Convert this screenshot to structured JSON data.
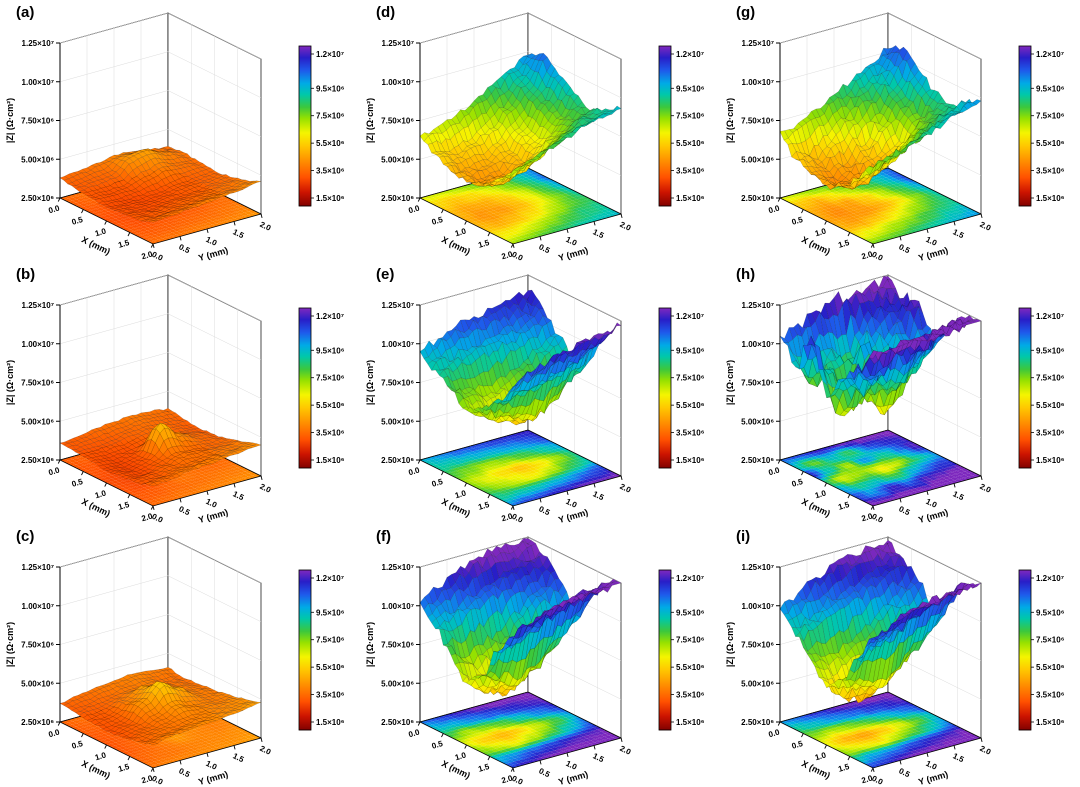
{
  "figure": {
    "description": "3x3 grid of 3D surface plots of impedance magnitude |Z| mapped over an X-Y area, with floor projection heatmaps and rainbow color scales",
    "rows": 3,
    "columns": 3
  },
  "chart_data": {
    "type": "surface",
    "z_values_unit": "10⁶ Ω·cm²",
    "x_axis": {
      "label": "X (mm)",
      "range": [
        0,
        2
      ],
      "ticks": [
        "0.0",
        "0.5",
        "1.0",
        "1.5",
        "2.0"
      ],
      "tick_values": [
        0,
        0.5,
        1,
        1.5,
        2
      ]
    },
    "y_axis": {
      "label": "Y (mm)",
      "range": [
        0,
        2
      ],
      "ticks": [
        "0.0",
        "0.5",
        "1.0",
        "1.5",
        "2.0"
      ],
      "tick_values": [
        0,
        0.5,
        1,
        1.5,
        2
      ]
    },
    "z_axis": {
      "label": "|Z| (Ω·cm²)",
      "min_display": 2.5,
      "max_display": 12.5,
      "tick_values": [
        2.5,
        5.0,
        7.5,
        10.0,
        12.5
      ],
      "tick_labels": [
        "2.50×10⁶",
        "5.00×10⁶",
        "7.50×10⁶",
        "1.00×10⁷",
        "1.25×10⁷"
      ]
    },
    "colorbar": {
      "min": 1.5,
      "max": 12.0,
      "tick_values": [
        1.5,
        3.5,
        5.5,
        7.5,
        9.5,
        12.0
      ],
      "tick_labels": [
        "1.5×10⁶",
        "3.5×10⁶",
        "5.5×10⁶",
        "7.5×10⁶",
        "9.5×10⁶",
        "1.2×10⁷"
      ]
    },
    "colormap_stops": [
      [
        0.0,
        [
          127,
          0,
          0
        ]
      ],
      [
        0.09,
        [
          205,
          20,
          0
        ]
      ],
      [
        0.18,
        [
          255,
          80,
          0
        ]
      ],
      [
        0.28,
        [
          255,
          140,
          0
        ]
      ],
      [
        0.38,
        [
          255,
          200,
          0
        ]
      ],
      [
        0.46,
        [
          245,
          245,
          0
        ]
      ],
      [
        0.55,
        [
          150,
          225,
          0
        ]
      ],
      [
        0.62,
        [
          60,
          200,
          60
        ]
      ],
      [
        0.7,
        [
          0,
          200,
          170
        ]
      ],
      [
        0.77,
        [
          0,
          170,
          230
        ]
      ],
      [
        0.85,
        [
          30,
          90,
          235
        ]
      ],
      [
        0.93,
        [
          40,
          30,
          200
        ]
      ],
      [
        1.0,
        [
          125,
          40,
          190
        ]
      ]
    ],
    "panels": [
      {
        "label": "(a)",
        "roughness": 0.12,
        "z_values": [
          [
            3.8,
            3.6,
            3.5,
            3.4,
            3.5,
            3.6,
            3.9
          ],
          [
            3.9,
            3.7,
            3.4,
            3.3,
            3.4,
            3.6,
            4.0
          ],
          [
            4.1,
            3.8,
            3.5,
            3.3,
            3.4,
            3.7,
            4.1
          ],
          [
            4.3,
            4.6,
            3.9,
            3.4,
            3.5,
            3.8,
            4.2
          ],
          [
            4.2,
            4.8,
            4.2,
            3.6,
            3.6,
            3.9,
            4.3
          ],
          [
            4.0,
            4.3,
            4.0,
            3.7,
            3.8,
            4.0,
            4.4
          ],
          [
            3.9,
            4.0,
            3.9,
            3.8,
            3.9,
            4.2,
            4.6
          ]
        ]
      },
      {
        "label": "(d)",
        "roughness": 0.35,
        "z_values": [
          [
            6.5,
            5.8,
            5.2,
            5.0,
            5.3,
            6.0,
            7.0
          ],
          [
            6.8,
            5.5,
            4.8,
            4.6,
            5.0,
            6.2,
            7.5
          ],
          [
            7.2,
            5.8,
            4.9,
            4.7,
            5.4,
            6.8,
            8.0
          ],
          [
            7.8,
            6.5,
            5.5,
            5.2,
            6.0,
            7.4,
            8.4
          ],
          [
            8.5,
            7.4,
            6.5,
            6.2,
            7.0,
            8.0,
            8.8
          ],
          [
            9.2,
            8.6,
            8.0,
            7.5,
            7.8,
            8.5,
            9.0
          ],
          [
            9.8,
            10.4,
            9.5,
            8.8,
            8.2,
            8.8,
            9.3
          ]
        ]
      },
      {
        "label": "(g)",
        "roughness": 0.5,
        "z_values": [
          [
            6.8,
            5.5,
            5.0,
            4.8,
            5.2,
            6.2,
            7.4
          ],
          [
            7.0,
            5.2,
            4.5,
            4.4,
            5.0,
            6.5,
            7.8
          ],
          [
            7.6,
            6.0,
            4.8,
            4.6,
            5.5,
            7.0,
            8.2
          ],
          [
            8.2,
            7.0,
            5.6,
            5.0,
            6.2,
            7.6,
            8.6
          ],
          [
            8.8,
            8.0,
            6.8,
            6.0,
            7.2,
            8.2,
            9.0
          ],
          [
            9.5,
            9.0,
            8.2,
            7.4,
            8.0,
            8.8,
            9.4
          ],
          [
            10.2,
            10.8,
            9.8,
            9.0,
            8.6,
            9.2,
            9.8
          ]
        ]
      },
      {
        "label": "(b)",
        "roughness": 0.12,
        "z_values": [
          [
            3.6,
            3.5,
            3.4,
            3.3,
            3.4,
            3.5,
            3.8
          ],
          [
            3.7,
            3.5,
            3.3,
            3.2,
            3.3,
            3.6,
            3.9
          ],
          [
            3.9,
            3.6,
            3.4,
            3.5,
            3.6,
            3.8,
            4.1
          ],
          [
            4.0,
            3.8,
            3.6,
            5.4,
            4.0,
            3.9,
            4.2
          ],
          [
            4.1,
            3.9,
            3.8,
            4.4,
            3.9,
            4.0,
            4.3
          ],
          [
            4.0,
            3.8,
            3.7,
            3.9,
            3.8,
            4.1,
            4.4
          ],
          [
            3.9,
            3.7,
            3.6,
            3.7,
            3.9,
            4.2,
            4.5
          ]
        ]
      },
      {
        "label": "(e)",
        "roughness": 0.55,
        "z_values": [
          [
            9.5,
            8.8,
            8.0,
            7.2,
            7.8,
            8.6,
            10.2
          ],
          [
            10.0,
            9.0,
            7.5,
            6.5,
            7.0,
            8.8,
            10.8
          ],
          [
            10.5,
            9.2,
            7.0,
            5.8,
            6.6,
            9.0,
            11.2
          ],
          [
            10.8,
            9.5,
            7.4,
            5.4,
            6.2,
            9.4,
            11.5
          ],
          [
            11.0,
            9.8,
            8.0,
            6.0,
            7.0,
            9.8,
            11.8
          ],
          [
            11.2,
            10.2,
            8.8,
            7.2,
            8.2,
            10.4,
            12.0
          ],
          [
            11.5,
            10.8,
            9.6,
            8.5,
            9.2,
            11.0,
            12.2
          ]
        ]
      },
      {
        "label": "(h)",
        "roughness": 0.95,
        "z_values": [
          [
            10.5,
            9.0,
            11.5,
            8.0,
            9.5,
            11.0,
            12.0
          ],
          [
            11.0,
            7.5,
            9.0,
            6.5,
            8.5,
            10.0,
            12.3
          ],
          [
            11.5,
            9.5,
            7.0,
            7.5,
            9.0,
            11.5,
            12.4
          ],
          [
            12.0,
            8.0,
            10.0,
            6.0,
            8.0,
            10.5,
            12.2
          ],
          [
            11.8,
            10.5,
            8.5,
            7.0,
            9.5,
            11.8,
            12.4
          ],
          [
            12.2,
            11.0,
            10.0,
            8.5,
            10.5,
            12.0,
            12.5
          ],
          [
            12.4,
            11.5,
            11.8,
            10.0,
            11.0,
            12.2,
            12.5
          ]
        ]
      },
      {
        "label": "(c)",
        "roughness": 0.12,
        "z_values": [
          [
            3.7,
            3.6,
            3.5,
            3.4,
            3.5,
            3.7,
            4.0
          ],
          [
            3.9,
            3.7,
            3.6,
            3.6,
            3.7,
            3.9,
            4.2
          ],
          [
            4.1,
            3.9,
            4.2,
            4.6,
            4.1,
            4.0,
            4.3
          ],
          [
            4.2,
            4.1,
            4.8,
            5.6,
            4.6,
            4.2,
            4.4
          ],
          [
            4.3,
            4.2,
            4.4,
            4.9,
            4.3,
            4.3,
            4.5
          ],
          [
            4.2,
            4.0,
            4.1,
            4.2,
            4.2,
            4.4,
            4.6
          ],
          [
            4.1,
            3.9,
            4.0,
            4.1,
            4.3,
            4.5,
            4.8
          ]
        ]
      },
      {
        "label": "(f)",
        "roughness": 0.6,
        "z_values": [
          [
            10.2,
            9.0,
            7.8,
            6.5,
            7.5,
            9.5,
            11.0
          ],
          [
            10.8,
            9.5,
            7.0,
            5.5,
            6.8,
            10.0,
            11.5
          ],
          [
            11.5,
            10.0,
            7.5,
            5.0,
            6.2,
            10.5,
            12.0
          ],
          [
            12.0,
            10.5,
            8.0,
            5.8,
            7.0,
            11.0,
            12.3
          ],
          [
            12.2,
            11.0,
            9.0,
            6.8,
            8.0,
            11.4,
            12.4
          ],
          [
            12.3,
            11.4,
            10.0,
            8.0,
            9.2,
            11.8,
            12.4
          ],
          [
            12.4,
            11.8,
            10.8,
            9.5,
            10.4,
            12.0,
            12.5
          ]
        ]
      },
      {
        "label": "(i)",
        "roughness": 0.6,
        "z_values": [
          [
            9.8,
            8.5,
            7.5,
            6.2,
            7.2,
            9.0,
            10.8
          ],
          [
            10.5,
            9.2,
            6.8,
            5.2,
            6.5,
            9.8,
            11.2
          ],
          [
            11.2,
            9.8,
            7.2,
            4.8,
            6.0,
            10.2,
            11.8
          ],
          [
            11.8,
            10.2,
            7.8,
            5.5,
            6.8,
            10.8,
            12.2
          ],
          [
            12.0,
            10.8,
            8.8,
            6.5,
            7.8,
            11.2,
            12.3
          ],
          [
            12.2,
            11.2,
            9.8,
            7.8,
            9.0,
            11.6,
            12.4
          ],
          [
            12.3,
            11.6,
            10.6,
            9.2,
            10.2,
            11.9,
            12.5
          ]
        ]
      }
    ]
  }
}
